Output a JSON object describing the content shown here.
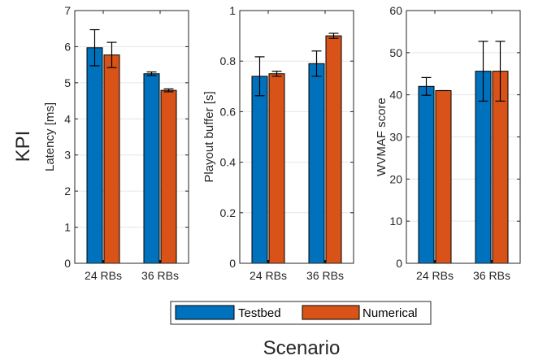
{
  "figure": {
    "ylabel": "KPI",
    "xlabel": "Scenario"
  },
  "colors": {
    "testbed": "#0072BD",
    "numerical": "#D95319",
    "grid": "#e6e6e6",
    "axis": "#262626"
  },
  "legend": {
    "position": "bottom-center",
    "items": [
      "Testbed",
      "Numerical"
    ]
  },
  "chart_data": [
    {
      "type": "bar",
      "categories": [
        "24 RBs",
        "36 RBs"
      ],
      "ylabel": "Latency [ms]",
      "ylim": [
        0,
        7
      ],
      "yticks": [
        0,
        1,
        2,
        3,
        4,
        5,
        6,
        7
      ],
      "grid": true,
      "series": [
        {
          "name": "Testbed",
          "values": [
            5.97,
            5.25
          ],
          "err": [
            0.5,
            0.05
          ]
        },
        {
          "name": "Numerical",
          "values": [
            5.77,
            4.79
          ],
          "err": [
            0.35,
            0.04
          ]
        }
      ]
    },
    {
      "type": "bar",
      "categories": [
        "24 RBs",
        "36 RBs"
      ],
      "ylabel": "Playout buffer [s]",
      "ylim": [
        0,
        1
      ],
      "yticks": [
        0,
        0.2,
        0.4,
        0.6,
        0.8,
        1
      ],
      "grid": true,
      "series": [
        {
          "name": "Testbed",
          "values": [
            0.74,
            0.79
          ],
          "err": [
            0.077,
            0.05
          ]
        },
        {
          "name": "Numerical",
          "values": [
            0.75,
            0.9
          ],
          "err": [
            0.01,
            0.01
          ]
        }
      ]
    },
    {
      "type": "bar",
      "categories": [
        "24 RBs",
        "36 RBs"
      ],
      "ylabel": "WVMAF score",
      "ylim": [
        0,
        60
      ],
      "yticks": [
        0,
        10,
        20,
        30,
        40,
        50,
        60
      ],
      "grid": true,
      "series": [
        {
          "name": "Testbed",
          "values": [
            42,
            45.6
          ],
          "err": [
            2.1,
            7.1
          ]
        },
        {
          "name": "Numerical",
          "values": [
            41,
            45.6
          ],
          "err": [
            0,
            7.1
          ]
        }
      ]
    }
  ]
}
